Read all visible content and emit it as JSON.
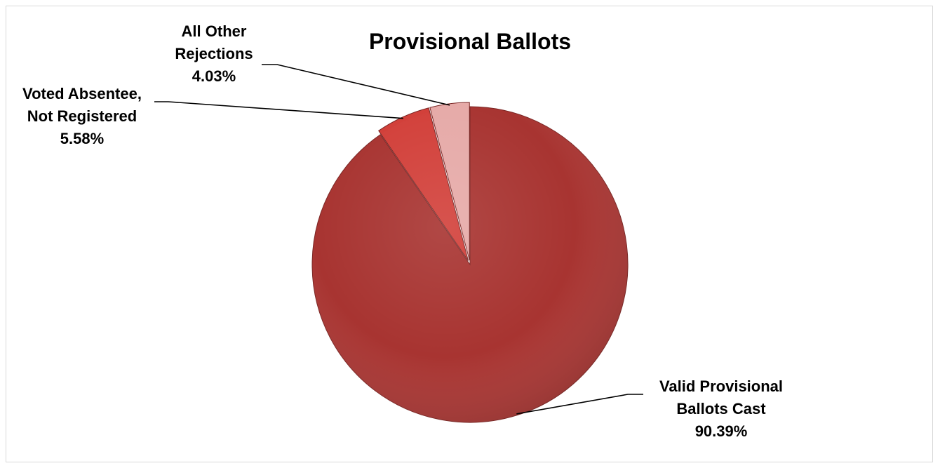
{
  "chart_data": {
    "type": "pie",
    "title": "Provisional Ballots",
    "slices": [
      {
        "label_lines": [
          "Valid Provisional",
          "Ballots Cast"
        ],
        "value": 90.39,
        "value_label": "90.39%",
        "color": "#a83431"
      },
      {
        "label_lines": [
          "Voted Absentee,",
          "Not Registered"
        ],
        "value": 5.58,
        "value_label": "5.58%",
        "color": "#d2403a"
      },
      {
        "label_lines": [
          "All Other",
          "Rejections"
        ],
        "value": 4.03,
        "value_label": "4.03%",
        "color": "#e6aaa8"
      }
    ],
    "legend": "none",
    "data_labels": "outside-with-leader-lines"
  }
}
